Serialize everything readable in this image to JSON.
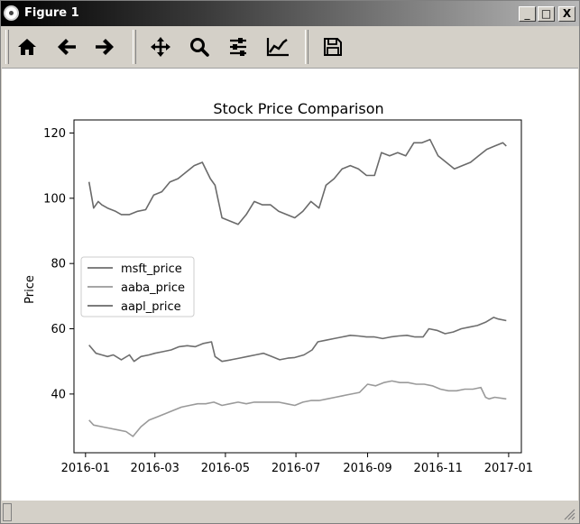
{
  "window": {
    "title": "Figure 1",
    "minimize": "_",
    "maximize": "□",
    "close": "X"
  },
  "toolbar": {
    "tools": [
      "home-icon",
      "back-arrow-icon",
      "forward-arrow-icon",
      "pan-icon",
      "zoom-icon",
      "configure-subplots-icon",
      "edit-axes-icon",
      "save-icon"
    ]
  },
  "chart_data": {
    "type": "line",
    "title": "Stock Price Comparison",
    "xlabel": "",
    "ylabel": "Price",
    "ylim": [
      22,
      124
    ],
    "x_ticks": [
      "2016-01",
      "2016-03",
      "2016-05",
      "2016-07",
      "2016-09",
      "2016-11",
      "2017-01"
    ],
    "y_ticks": [
      40,
      60,
      80,
      100,
      120
    ],
    "legend_placement": "center-left",
    "grid": false,
    "colors": {
      "msft_price": "#6e6e6e",
      "aaba_price": "#9a9a9a",
      "aapl_price": "#6a6a6a"
    },
    "series": [
      {
        "name": "msft_price",
        "x": [
          "2016-01-04",
          "2016-01-10",
          "2016-01-15",
          "2016-01-20",
          "2016-01-25",
          "2016-02-01",
          "2016-02-08",
          "2016-02-12",
          "2016-02-18",
          "2016-02-25",
          "2016-03-01",
          "2016-03-08",
          "2016-03-15",
          "2016-03-22",
          "2016-03-29",
          "2016-04-05",
          "2016-04-12",
          "2016-04-19",
          "2016-04-22",
          "2016-04-28",
          "2016-05-06",
          "2016-05-13",
          "2016-05-20",
          "2016-05-27",
          "2016-06-03",
          "2016-06-10",
          "2016-06-17",
          "2016-06-24",
          "2016-06-30",
          "2016-07-08",
          "2016-07-15",
          "2016-07-20",
          "2016-07-27",
          "2016-08-03",
          "2016-08-10",
          "2016-08-17",
          "2016-08-24",
          "2016-08-31",
          "2016-09-07",
          "2016-09-14",
          "2016-09-21",
          "2016-09-28",
          "2016-10-05",
          "2016-10-12",
          "2016-10-19",
          "2016-10-24",
          "2016-10-31",
          "2016-11-07",
          "2016-11-14",
          "2016-11-21",
          "2016-11-28",
          "2016-12-05",
          "2016-12-12",
          "2016-12-19",
          "2016-12-23",
          "2016-12-30"
        ],
        "y": [
          55,
          52.5,
          52,
          51.5,
          52,
          50.5,
          52,
          50,
          51.5,
          52,
          52.5,
          53,
          53.5,
          54.5,
          54.8,
          54.5,
          55.5,
          56,
          51.5,
          50,
          50.5,
          51,
          51.5,
          52,
          52.5,
          51.5,
          50.5,
          51,
          51.2,
          52,
          53.5,
          56,
          56.5,
          57,
          57.5,
          58,
          57.8,
          57.5,
          57.5,
          57,
          57.5,
          57.8,
          58,
          57.5,
          57.5,
          60,
          59.5,
          58.5,
          59,
          60,
          60.5,
          61,
          62,
          63.5,
          63,
          62.5
        ]
      },
      {
        "name": "aaba_price",
        "x": [
          "2016-01-04",
          "2016-01-08",
          "2016-01-15",
          "2016-01-22",
          "2016-01-29",
          "2016-02-05",
          "2016-02-11",
          "2016-02-18",
          "2016-02-25",
          "2016-03-03",
          "2016-03-10",
          "2016-03-17",
          "2016-03-24",
          "2016-03-31",
          "2016-04-07",
          "2016-04-14",
          "2016-04-21",
          "2016-04-28",
          "2016-05-05",
          "2016-05-12",
          "2016-05-19",
          "2016-05-26",
          "2016-06-02",
          "2016-06-09",
          "2016-06-16",
          "2016-06-23",
          "2016-06-30",
          "2016-07-07",
          "2016-07-14",
          "2016-07-21",
          "2016-07-28",
          "2016-08-04",
          "2016-08-11",
          "2016-08-18",
          "2016-08-25",
          "2016-09-01",
          "2016-09-08",
          "2016-09-15",
          "2016-09-22",
          "2016-09-29",
          "2016-10-06",
          "2016-10-13",
          "2016-10-20",
          "2016-10-27",
          "2016-11-03",
          "2016-11-10",
          "2016-11-17",
          "2016-11-24",
          "2016-12-01",
          "2016-12-08",
          "2016-12-12",
          "2016-12-15",
          "2016-12-20",
          "2016-12-30"
        ],
        "y": [
          32,
          30.5,
          30,
          29.5,
          29,
          28.5,
          27,
          30,
          32,
          33,
          34,
          35,
          36,
          36.5,
          37,
          37,
          37.5,
          36.5,
          37,
          37.5,
          37,
          37.5,
          37.5,
          37.5,
          37.5,
          37,
          36.5,
          37.5,
          38,
          38,
          38.5,
          39,
          39.5,
          40,
          40.5,
          43,
          42.5,
          43.5,
          44,
          43.5,
          43.5,
          43,
          43,
          42.5,
          41.5,
          41,
          41,
          41.5,
          41.5,
          42,
          39,
          38.5,
          39,
          38.5
        ]
      },
      {
        "name": "aapl_price",
        "x": [
          "2016-01-04",
          "2016-01-08",
          "2016-01-12",
          "2016-01-15",
          "2016-01-20",
          "2016-01-27",
          "2016-02-01",
          "2016-02-08",
          "2016-02-15",
          "2016-02-22",
          "2016-02-29",
          "2016-03-07",
          "2016-03-14",
          "2016-03-21",
          "2016-03-28",
          "2016-04-04",
          "2016-04-11",
          "2016-04-18",
          "2016-04-22",
          "2016-04-28",
          "2016-05-05",
          "2016-05-12",
          "2016-05-19",
          "2016-05-26",
          "2016-06-02",
          "2016-06-09",
          "2016-06-16",
          "2016-06-23",
          "2016-06-30",
          "2016-07-07",
          "2016-07-14",
          "2016-07-21",
          "2016-07-27",
          "2016-08-03",
          "2016-08-10",
          "2016-08-17",
          "2016-08-24",
          "2016-08-31",
          "2016-09-07",
          "2016-09-13",
          "2016-09-20",
          "2016-09-27",
          "2016-10-04",
          "2016-10-11",
          "2016-10-18",
          "2016-10-25",
          "2016-11-01",
          "2016-11-08",
          "2016-11-15",
          "2016-11-22",
          "2016-11-29",
          "2016-12-06",
          "2016-12-13",
          "2016-12-20",
          "2016-12-27",
          "2016-12-30"
        ],
        "y": [
          105,
          97,
          99,
          98,
          97,
          96,
          95,
          95,
          96,
          96.5,
          101,
          102,
          105,
          106,
          108,
          110,
          111,
          106,
          104,
          94,
          93,
          92,
          95,
          99,
          98,
          98,
          96,
          95,
          94,
          96,
          99,
          97,
          104,
          106,
          109,
          110,
          109,
          107,
          107,
          114,
          113,
          114,
          113,
          117,
          117,
          118,
          113,
          111,
          109,
          110,
          111,
          113,
          115,
          116,
          117,
          116
        ]
      }
    ]
  }
}
